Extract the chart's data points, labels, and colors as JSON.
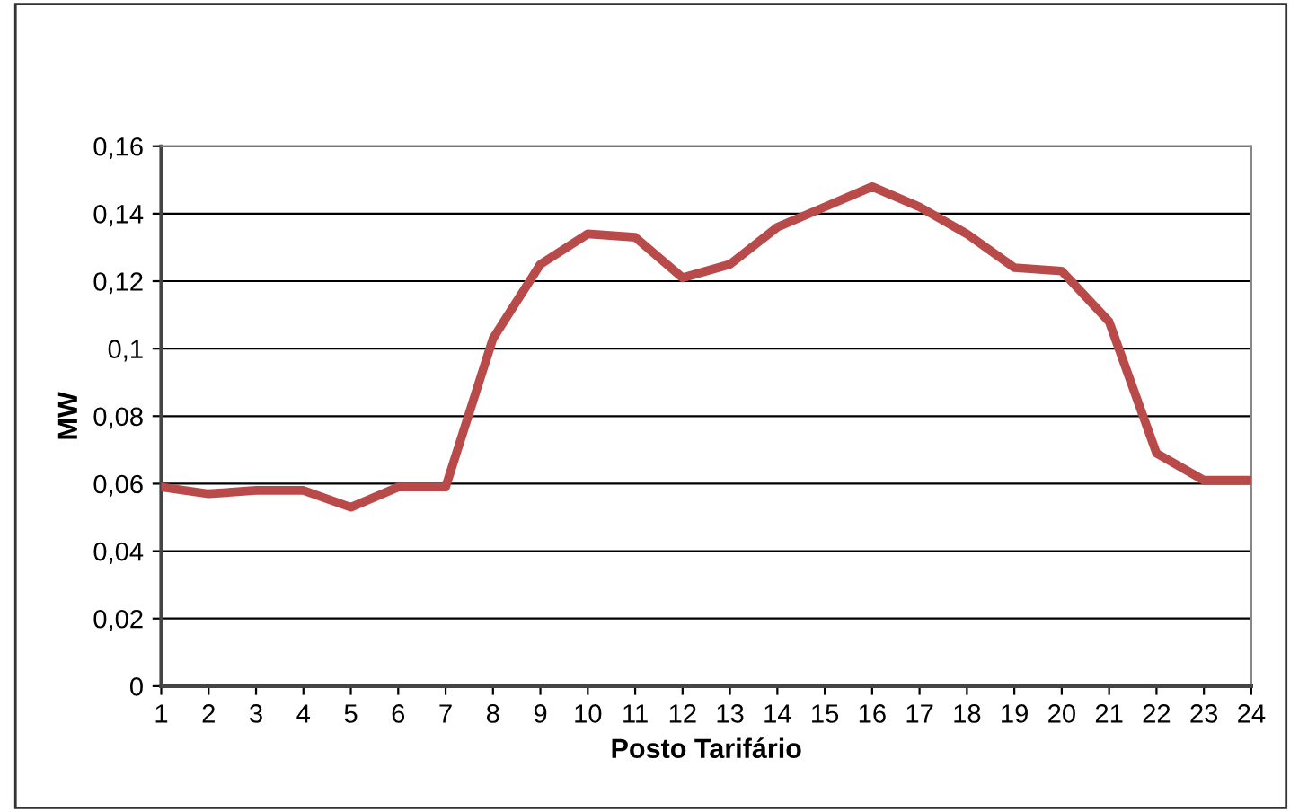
{
  "chart_data": {
    "type": "line",
    "xlabel": "Posto Tarifário",
    "ylabel": "MW",
    "x": [
      1,
      2,
      3,
      4,
      5,
      6,
      7,
      8,
      9,
      10,
      11,
      12,
      13,
      14,
      15,
      16,
      17,
      18,
      19,
      20,
      21,
      22,
      23,
      24
    ],
    "series": [
      {
        "color": "#b94a4a",
        "values": [
          0.059,
          0.057,
          0.058,
          0.058,
          0.053,
          0.059,
          0.059,
          0.103,
          0.125,
          0.134,
          0.133,
          0.121,
          0.125,
          0.136,
          0.142,
          0.148,
          0.142,
          0.134,
          0.124,
          0.123,
          0.108,
          0.069,
          0.061,
          0.061
        ]
      }
    ],
    "xlim": [
      1,
      24
    ],
    "xticks": [
      1,
      2,
      3,
      4,
      5,
      6,
      7,
      8,
      9,
      10,
      11,
      12,
      13,
      14,
      15,
      16,
      17,
      18,
      19,
      20,
      21,
      22,
      23,
      24
    ],
    "ylim": [
      0,
      0.16
    ],
    "yticks": [
      0,
      {
        "value": 0.02,
        "label": "0,02"
      },
      {
        "value": 0.04,
        "label": "0,04"
      },
      {
        "value": 0.06,
        "label": "0,06"
      },
      {
        "value": 0.08,
        "label": "0,08"
      },
      {
        "value": 0.1,
        "label": "0,1"
      },
      {
        "value": 0.12,
        "label": "0,12"
      },
      {
        "value": 0.14,
        "label": "0,14"
      },
      {
        "value": 0.16,
        "label": "0,16"
      }
    ],
    "grid": "y",
    "legend": false,
    "marker": "none",
    "line_style": "solid"
  }
}
